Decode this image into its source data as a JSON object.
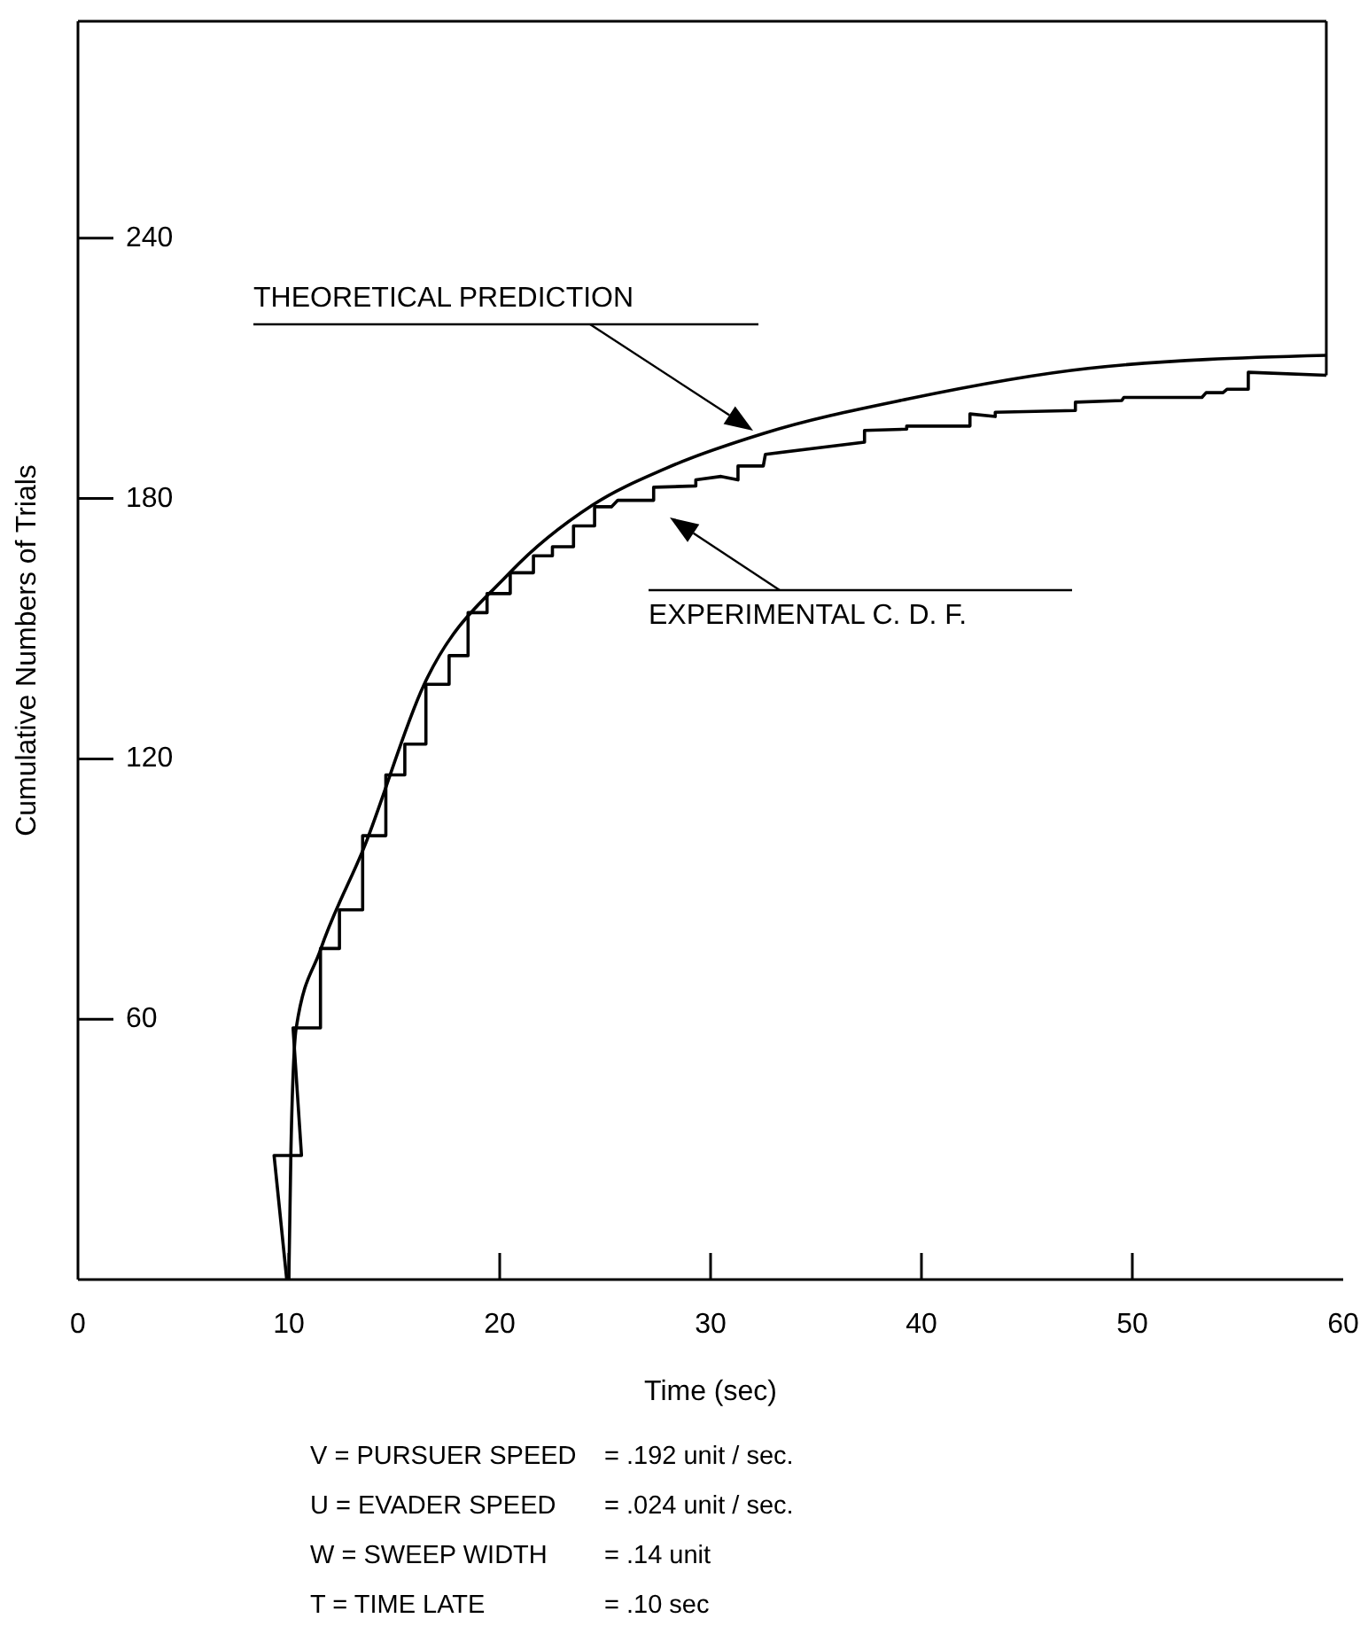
{
  "chart_data": {
    "type": "line",
    "xlabel": "Time (sec)",
    "ylabel": "Cumulative Numbers of Trials",
    "xlim": [
      0,
      60
    ],
    "ylim": [
      0,
      290
    ],
    "xticks": [
      0,
      10,
      20,
      30,
      40,
      50,
      60
    ],
    "yticks": [
      60,
      120,
      180,
      240
    ],
    "grid": false,
    "marker": "none",
    "line_style": "solid",
    "series": [
      {
        "color": "#000000",
        "x": [
          10,
          10.1,
          10.35,
          11.5,
          13.6,
          16.4,
          20.5,
          24.4,
          27.9,
          32.5,
          39.4,
          47.9,
          59.2
        ],
        "values": [
          0,
          30,
          58,
          76,
          100,
          137,
          163,
          178.5,
          187,
          195,
          203,
          210,
          213
        ]
      },
      {
        "color": "#000000",
        "x": [
          9.9,
          9.3,
          10.6,
          10.2,
          11.5,
          11.5,
          12.4,
          12.4,
          13.5,
          13.5,
          14.6,
          14.6,
          15.5,
          15.5,
          16.5,
          16.5,
          17.6,
          17.6,
          18.5,
          18.5,
          19.4,
          19.4,
          20.5,
          20.5,
          21.6,
          21.6,
          22.5,
          22.5,
          23.5,
          23.5,
          24.5,
          24.5,
          25.3,
          25.6,
          27.3,
          27.3,
          29.3,
          29.3,
          30.5,
          31.3,
          31.3,
          32.5,
          32.6,
          37.3,
          37.3,
          39.3,
          39.3,
          42.3,
          42.3,
          43.5,
          43.5,
          47.3,
          47.3,
          49.5,
          49.6,
          53.3,
          53.5,
          54.3,
          54.5,
          55.5,
          55.5,
          59.2
        ],
        "values": [
          0,
          28.6,
          28.6,
          58,
          58,
          76.3,
          76.3,
          85.2,
          85.2,
          102.3,
          102.3,
          116.3,
          116.3,
          123.4,
          123.4,
          137.2,
          137.2,
          143.8,
          143.8,
          153.7,
          153.7,
          158.1,
          158.1,
          162.9,
          162.9,
          166.8,
          166.8,
          168.9,
          168.9,
          173.7,
          173.7,
          178.1,
          178.1,
          179.6,
          179.6,
          182.6,
          182.9,
          184.3,
          185.1,
          184.3,
          187.5,
          187.5,
          190.2,
          193,
          195.7,
          196,
          196.7,
          196.7,
          199.5,
          198.9,
          199.9,
          200.3,
          202.2,
          202.6,
          203.3,
          203.3,
          204.4,
          204.4,
          205.2,
          205.2,
          209.1,
          208.4
        ]
      }
    ],
    "annotations": [
      "THEORETICAL PREDICTION",
      "EXPERIMENTAL C. D. F.",
      "V = PURSUER SPEED = .192 unit / sec.",
      "U = EVADER SPEED = .024 unit / sec.",
      "W = SWEEP WIDTH = .14 unit",
      "T = TIME LATE = .10 sec"
    ]
  }
}
